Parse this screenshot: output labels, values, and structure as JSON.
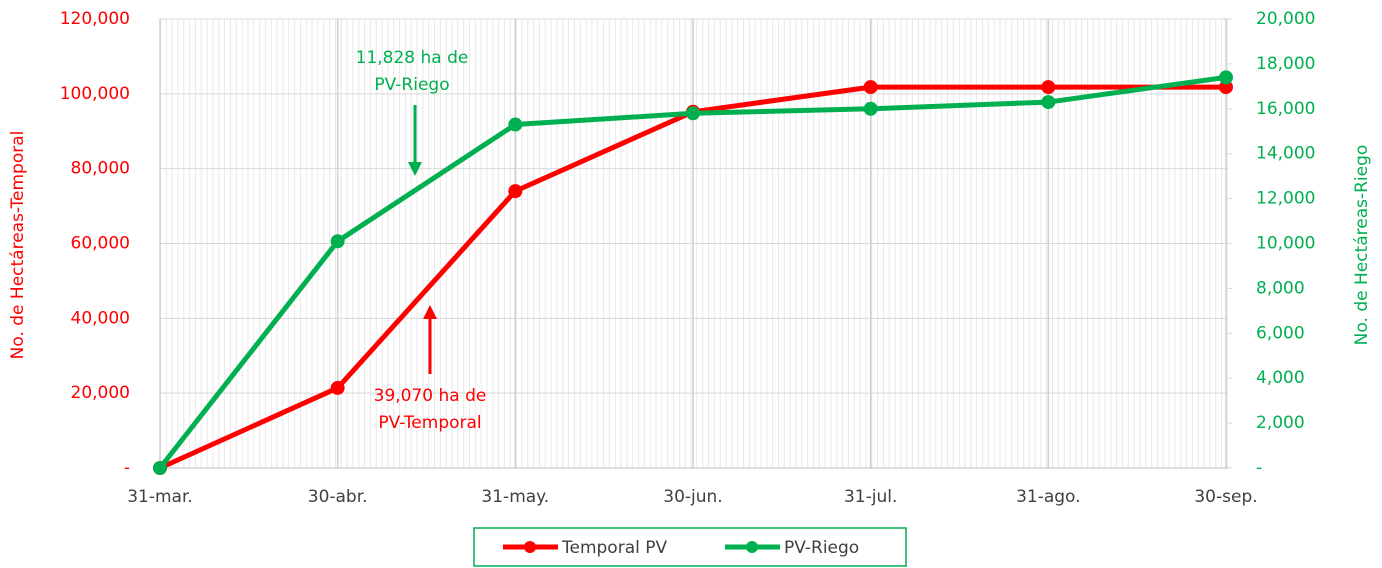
{
  "chart_data": {
    "type": "line",
    "categories": [
      "31-mar.",
      "30-abr.",
      "31-may.",
      "30-jun.",
      "31-jul.",
      "31-ago.",
      "30-sep."
    ],
    "series": [
      {
        "name": "Temporal PV",
        "color": "#ff0000",
        "values": [
          0,
          21400,
          74000,
          95200,
          101800,
          101800,
          101800
        ]
      },
      {
        "name": "PV-Riego",
        "color": "#00b050",
        "axis": "y2",
        "values": [
          0,
          10100,
          15300,
          15800,
          16000,
          16300,
          17400
        ]
      }
    ],
    "ylabel": "No. de Hectáreas-Temporal",
    "y2label": "No. de Hectáreas-Riego",
    "ylim": [
      0,
      120000
    ],
    "yticks": [
      {
        "value": 0,
        "label": "-"
      },
      {
        "value": 20000,
        "label": "20,000"
      },
      {
        "value": 40000,
        "label": "40,000"
      },
      {
        "value": 60000,
        "label": "60,000"
      },
      {
        "value": 80000,
        "label": "80,000"
      },
      {
        "value": 100000,
        "label": "100,000"
      },
      {
        "value": 120000,
        "label": "120,000"
      }
    ],
    "y2lim": [
      0,
      20000
    ],
    "y2ticks": [
      {
        "value": 0,
        "label": "-"
      },
      {
        "value": 2000,
        "label": "2,000"
      },
      {
        "value": 4000,
        "label": "4,000"
      },
      {
        "value": 6000,
        "label": "6,000"
      },
      {
        "value": 8000,
        "label": "8,000"
      },
      {
        "value": 10000,
        "label": "10,000"
      },
      {
        "value": 12000,
        "label": "12,000"
      },
      {
        "value": 14000,
        "label": "14,000"
      },
      {
        "value": 16000,
        "label": "16,000"
      },
      {
        "value": 18000,
        "label": "18,000"
      },
      {
        "value": 20000,
        "label": "20,000"
      }
    ],
    "annotations": [
      {
        "lines": [
          "11,828 ha de",
          "PV-Riego"
        ],
        "color": "#00b050"
      },
      {
        "lines": [
          "39,070 ha de",
          "PV-Temporal"
        ],
        "color": "#ff0000"
      }
    ],
    "grid": true,
    "legend": "bottom"
  }
}
